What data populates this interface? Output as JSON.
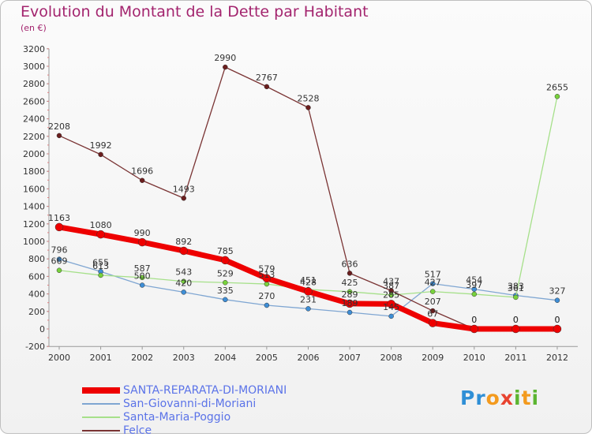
{
  "header": {
    "title": "Evolution du Montant de la Dette par Habitant",
    "subtitle": "(en €)"
  },
  "logo_text": "Proxiti",
  "colors": {
    "title": "#a3246e",
    "legend_text": "#5b73e8"
  },
  "chart_data": {
    "type": "line",
    "title": "Evolution du Montant de la Dette par Habitant",
    "subtitle": "(en €)",
    "xlabel": "",
    "ylabel": "",
    "categories": [
      "2000",
      "2001",
      "2002",
      "2003",
      "2004",
      "2005",
      "2006",
      "2007",
      "2008",
      "2009",
      "2010",
      "2011",
      "2012"
    ],
    "ylim": [
      -200,
      3200
    ],
    "yticks": [
      -200,
      0,
      200,
      400,
      600,
      800,
      1000,
      1200,
      1400,
      1600,
      1800,
      2000,
      2200,
      2400,
      2600,
      2800,
      3000,
      3200
    ],
    "grid": false,
    "legend_position": "bottom-left",
    "series": [
      {
        "name": "SANTA-REPARATA-DI-MORIANI",
        "color": "#ee0000",
        "marker_color": "#ee0000",
        "line_width": 7,
        "marker_radius": 5,
        "values": [
          1163,
          1080,
          990,
          892,
          785,
          579,
          428,
          289,
          285,
          67,
          0,
          0,
          0
        ],
        "labels": [
          "1163",
          "1080",
          "990",
          "892",
          "785",
          "579",
          "428",
          "289",
          "285",
          "67",
          "0",
          "0",
          "0"
        ]
      },
      {
        "name": "San-Giovanni-di-Moriani",
        "color": "#7fa6d2",
        "marker_color": "#3e8ed6",
        "line_width": 1.3,
        "marker_radius": 3,
        "values": [
          796,
          655,
          500,
          420,
          335,
          270,
          231,
          189,
          145,
          517,
          454,
          383,
          327
        ],
        "labels": [
          "796",
          "655",
          "500",
          "420",
          "335",
          "270",
          "231",
          "189",
          "145",
          "517",
          "454",
          "383",
          "327"
        ]
      },
      {
        "name": "Santa-Maria-Poggio",
        "color": "#a6e08a",
        "marker_color": "#78d23c",
        "line_width": 1.3,
        "marker_radius": 3,
        "values": [
          669,
          613,
          587,
          543,
          529,
          513,
          451,
          425,
          387,
          427,
          397,
          361,
          2655
        ],
        "labels": [
          "669",
          "613",
          "587",
          "543",
          "529",
          "513",
          "451",
          "425",
          "387",
          "427",
          "397",
          "361",
          "2655"
        ]
      },
      {
        "name": "Felce",
        "color": "#7a3434",
        "marker_color": "#6b1e1e",
        "line_width": 1.3,
        "marker_radius": 3,
        "values": [
          2208,
          1992,
          1696,
          1493,
          2990,
          2767,
          2528,
          636,
          437,
          207,
          0,
          0,
          0
        ],
        "labels": [
          "2208",
          "1992",
          "1696",
          "1493",
          "2990",
          "2767",
          "2528",
          "636",
          "437",
          "207",
          "0",
          "0",
          "0"
        ]
      }
    ]
  }
}
